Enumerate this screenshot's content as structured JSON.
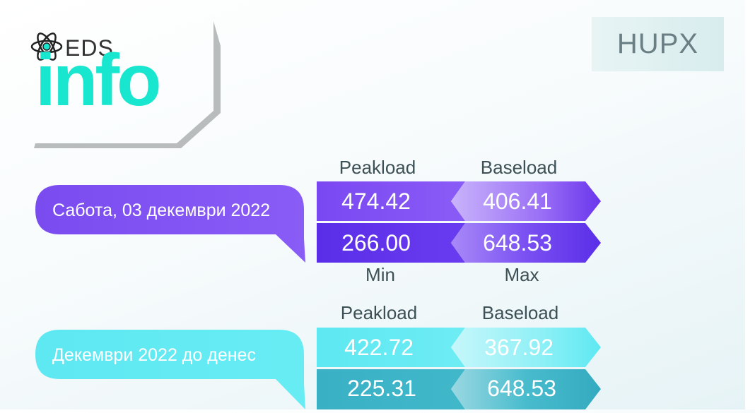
{
  "logo": {
    "small_text": "EDS",
    "big_text": "info"
  },
  "market": {
    "label": "HUPX"
  },
  "day_section": {
    "date_label": "Сабота, 03 декември 2022",
    "header_left": "Peakload",
    "header_right": "Baseload",
    "peakload": "474.42",
    "baseload": "406.41",
    "min": "266.00",
    "max": "648.53",
    "footer_left": "Min",
    "footer_right": "Max"
  },
  "month_section": {
    "period_label": "Декември 2022 до денес",
    "header_left": "Peakload",
    "header_right": "Baseload",
    "peakload": "422.72",
    "baseload": "367.92",
    "min": "225.31",
    "max": "648.53"
  },
  "colors": {
    "purple": "#7b4ff0",
    "purple_dark": "#5a2ee8",
    "cyan": "#5ee8f2",
    "cyan_dark": "#3ab0c4",
    "logo": "#19e6cf"
  }
}
